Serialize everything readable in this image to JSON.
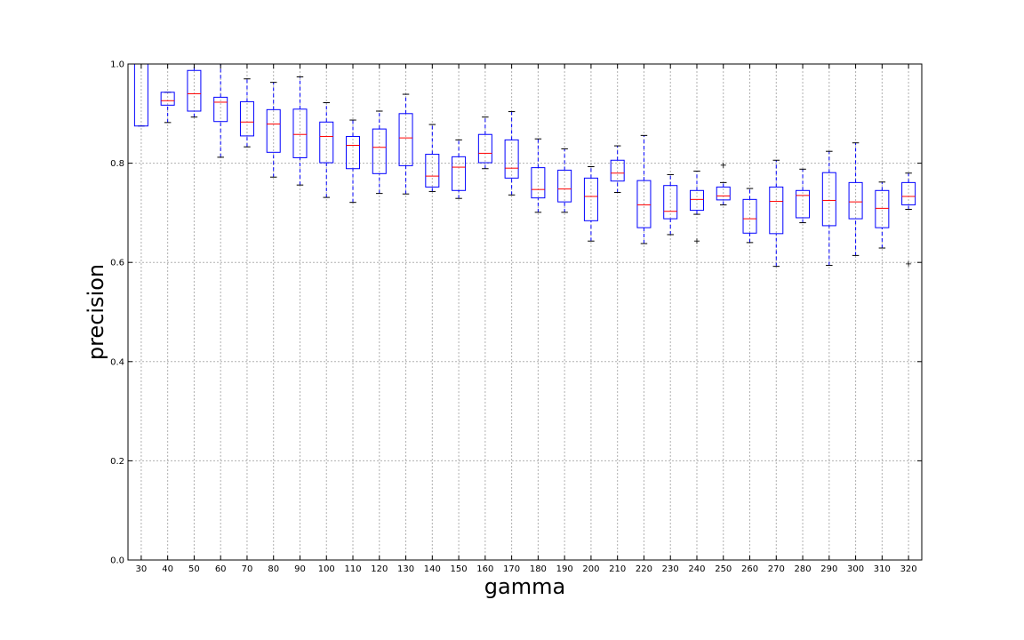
{
  "chart_data": {
    "type": "boxplot",
    "title": "",
    "xlabel": "gamma",
    "ylabel": "precision",
    "ylim": [
      0.0,
      1.0
    ],
    "yticks": [
      "0.0",
      "0.2",
      "0.4",
      "0.6",
      "0.8",
      "1.0"
    ],
    "grid": true,
    "colors": {
      "box": "#0000ff",
      "median": "#ff0000",
      "whisker": "#0000ff",
      "cap": "#000000",
      "grid": "#b0b0b0"
    },
    "categories": [
      "30",
      "40",
      "50",
      "60",
      "70",
      "80",
      "90",
      "100",
      "110",
      "120",
      "130",
      "140",
      "150",
      "160",
      "170",
      "180",
      "190",
      "200",
      "210",
      "220",
      "230",
      "240",
      "250",
      "260",
      "270",
      "280",
      "290",
      "300",
      "310",
      "320"
    ],
    "boxes": [
      {
        "min": 0.875,
        "q1": 0.875,
        "median": 1.0,
        "q3": 1.0,
        "max": 1.0,
        "outliers": []
      },
      {
        "min": 0.882,
        "q1": 0.917,
        "median": 0.926,
        "q3": 0.943,
        "max": 0.943,
        "outliers": []
      },
      {
        "min": 0.893,
        "q1": 0.905,
        "median": 0.94,
        "q3": 0.987,
        "max": 1.0,
        "outliers": []
      },
      {
        "min": 0.812,
        "q1": 0.884,
        "median": 0.923,
        "q3": 0.933,
        "max": 1.0,
        "outliers": []
      },
      {
        "min": 0.833,
        "q1": 0.855,
        "median": 0.883,
        "q3": 0.924,
        "max": 0.97,
        "outliers": []
      },
      {
        "min": 0.772,
        "q1": 0.822,
        "median": 0.879,
        "q3": 0.908,
        "max": 0.963,
        "outliers": []
      },
      {
        "min": 0.756,
        "q1": 0.811,
        "median": 0.858,
        "q3": 0.909,
        "max": 0.974,
        "outliers": []
      },
      {
        "min": 0.731,
        "q1": 0.801,
        "median": 0.854,
        "q3": 0.883,
        "max": 0.922,
        "outliers": []
      },
      {
        "min": 0.721,
        "q1": 0.789,
        "median": 0.836,
        "q3": 0.854,
        "max": 0.887,
        "outliers": []
      },
      {
        "min": 0.739,
        "q1": 0.779,
        "median": 0.832,
        "q3": 0.869,
        "max": 0.905,
        "outliers": []
      },
      {
        "min": 0.738,
        "q1": 0.795,
        "median": 0.851,
        "q3": 0.9,
        "max": 0.939,
        "outliers": []
      },
      {
        "min": 0.743,
        "q1": 0.752,
        "median": 0.774,
        "q3": 0.818,
        "max": 0.878,
        "outliers": []
      },
      {
        "min": 0.729,
        "q1": 0.745,
        "median": 0.792,
        "q3": 0.813,
        "max": 0.847,
        "outliers": []
      },
      {
        "min": 0.789,
        "q1": 0.801,
        "median": 0.82,
        "q3": 0.858,
        "max": 0.893,
        "outliers": []
      },
      {
        "min": 0.736,
        "q1": 0.77,
        "median": 0.79,
        "q3": 0.847,
        "max": 0.904,
        "outliers": []
      },
      {
        "min": 0.701,
        "q1": 0.73,
        "median": 0.747,
        "q3": 0.791,
        "max": 0.849,
        "outliers": []
      },
      {
        "min": 0.701,
        "q1": 0.722,
        "median": 0.748,
        "q3": 0.786,
        "max": 0.829,
        "outliers": []
      },
      {
        "min": 0.643,
        "q1": 0.684,
        "median": 0.733,
        "q3": 0.77,
        "max": 0.793,
        "outliers": []
      },
      {
        "min": 0.741,
        "q1": 0.764,
        "median": 0.78,
        "q3": 0.806,
        "max": 0.835,
        "outliers": []
      },
      {
        "min": 0.638,
        "q1": 0.67,
        "median": 0.716,
        "q3": 0.765,
        "max": 0.856,
        "outliers": []
      },
      {
        "min": 0.656,
        "q1": 0.688,
        "median": 0.703,
        "q3": 0.755,
        "max": 0.777,
        "outliers": []
      },
      {
        "min": 0.697,
        "q1": 0.705,
        "median": 0.727,
        "q3": 0.745,
        "max": 0.784,
        "outliers": [
          0.643
        ]
      },
      {
        "min": 0.716,
        "q1": 0.726,
        "median": 0.734,
        "q3": 0.752,
        "max": 0.761,
        "outliers": [
          0.796
        ]
      },
      {
        "min": 0.64,
        "q1": 0.659,
        "median": 0.688,
        "q3": 0.727,
        "max": 0.749,
        "outliers": []
      },
      {
        "min": 0.592,
        "q1": 0.658,
        "median": 0.723,
        "q3": 0.752,
        "max": 0.806,
        "outliers": []
      },
      {
        "min": 0.68,
        "q1": 0.69,
        "median": 0.735,
        "q3": 0.745,
        "max": 0.788,
        "outliers": []
      },
      {
        "min": 0.594,
        "q1": 0.674,
        "median": 0.725,
        "q3": 0.781,
        "max": 0.824,
        "outliers": []
      },
      {
        "min": 0.614,
        "q1": 0.688,
        "median": 0.722,
        "q3": 0.761,
        "max": 0.841,
        "outliers": []
      },
      {
        "min": 0.629,
        "q1": 0.67,
        "median": 0.709,
        "q3": 0.745,
        "max": 0.762,
        "outliers": []
      },
      {
        "min": 0.707,
        "q1": 0.716,
        "median": 0.733,
        "q3": 0.761,
        "max": 0.78,
        "outliers": [
          0.597
        ]
      }
    ]
  }
}
